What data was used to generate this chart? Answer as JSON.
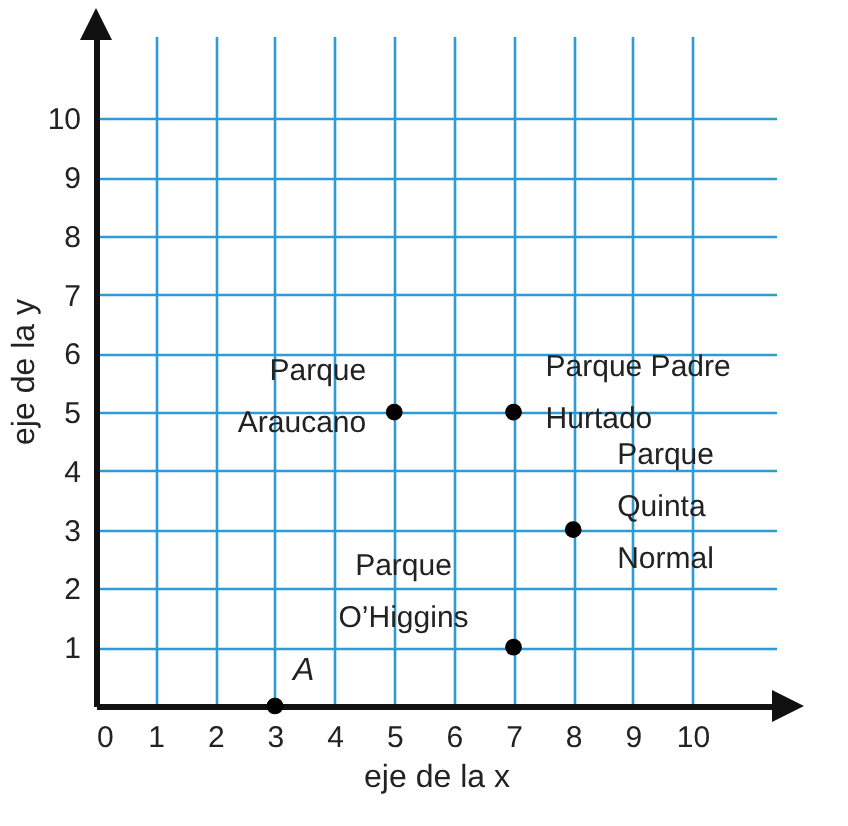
{
  "chart_data": {
    "type": "scatter",
    "xlabel": "eje de la x",
    "ylabel": "eje de la y",
    "x": [
      3,
      5,
      7,
      7,
      8
    ],
    "series": [
      {
        "color": "#000000",
        "values": [
          0,
          5,
          5,
          1,
          3
        ]
      }
    ],
    "marker": "circle",
    "grid": true,
    "xlim": [
      0,
      11.4
    ],
    "ylim": [
      0,
      11.4
    ],
    "xticks": [
      0,
      1,
      2,
      3,
      4,
      5,
      6,
      7,
      8,
      9,
      10
    ],
    "yticks": [
      1,
      2,
      3,
      4,
      5,
      6,
      7,
      8,
      9,
      10
    ],
    "annotations": [
      {
        "text": "Parque Araucano",
        "x": 5,
        "y": 5
      },
      {
        "text": "Parque Padre Hurtado",
        "x": 7,
        "y": 5
      },
      {
        "text": "Parque Quinta Normal",
        "x": 8,
        "y": 3
      },
      {
        "text": "Parque O’Higgins",
        "x": 7,
        "y": 1
      },
      {
        "text": "A",
        "x": 3,
        "y": 0
      }
    ]
  }
}
